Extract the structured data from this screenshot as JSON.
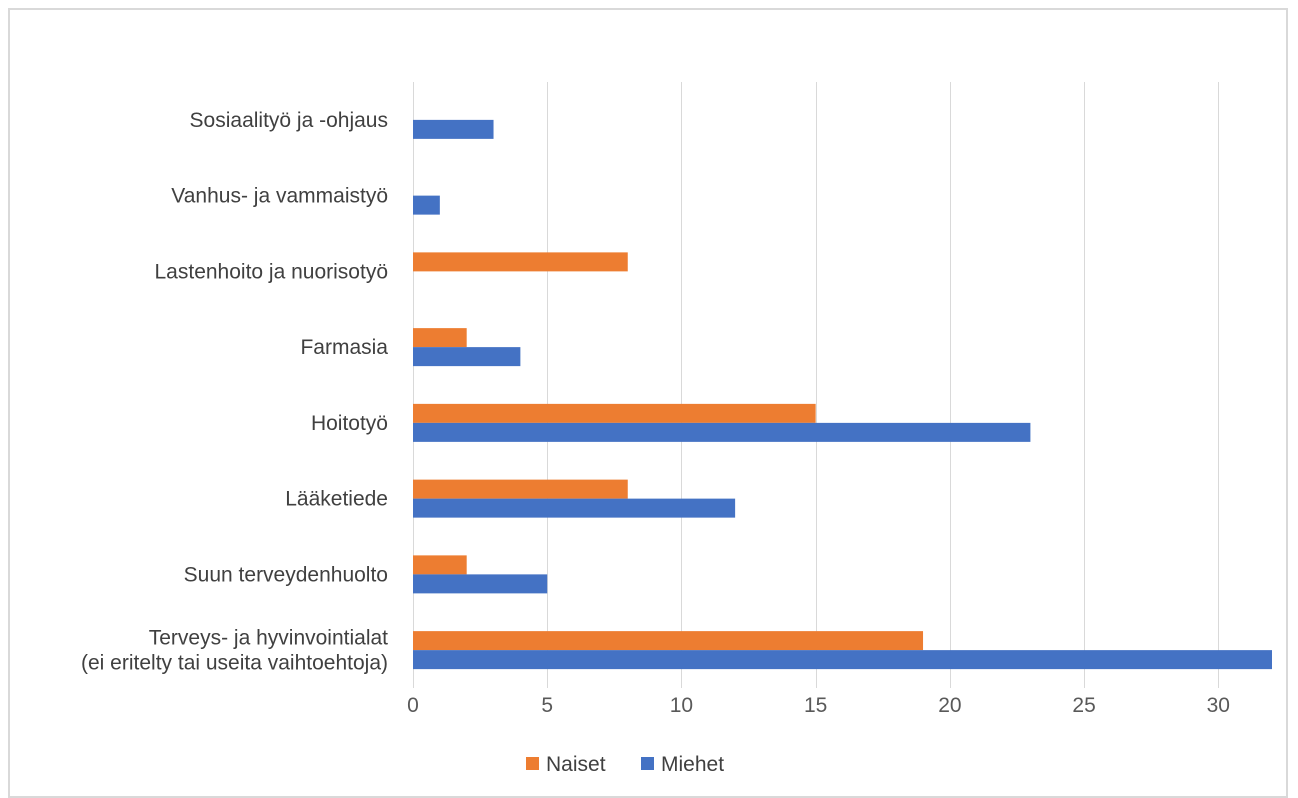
{
  "chart_data": {
    "type": "bar",
    "orientation": "horizontal",
    "categories": [
      [
        "Sosiaalityö ja -ohjaus"
      ],
      [
        "Vanhus- ja vammaistyö"
      ],
      [
        "Lastenhoito ja nuorisotyö"
      ],
      [
        "Farmasia"
      ],
      [
        "Hoitotyö"
      ],
      [
        "Lääketiede"
      ],
      [
        "Suun terveydenhuolto"
      ],
      [
        "Terveys- ja hyvinvointialat",
        "(ei eritelty tai useita vaihtoehtoja)"
      ]
    ],
    "series": [
      {
        "name": "Naiset",
        "color": "#ED7D31",
        "values": [
          0,
          0,
          8,
          2,
          15,
          8,
          2,
          19
        ]
      },
      {
        "name": "Miehet",
        "color": "#4472C4",
        "values": [
          3,
          1,
          0,
          4,
          23,
          12,
          5,
          32
        ]
      }
    ],
    "xlim": [
      0,
      32
    ],
    "xticks": [
      0,
      5,
      10,
      15,
      20,
      25,
      30
    ],
    "grid": true,
    "legend_position": "bottom"
  }
}
